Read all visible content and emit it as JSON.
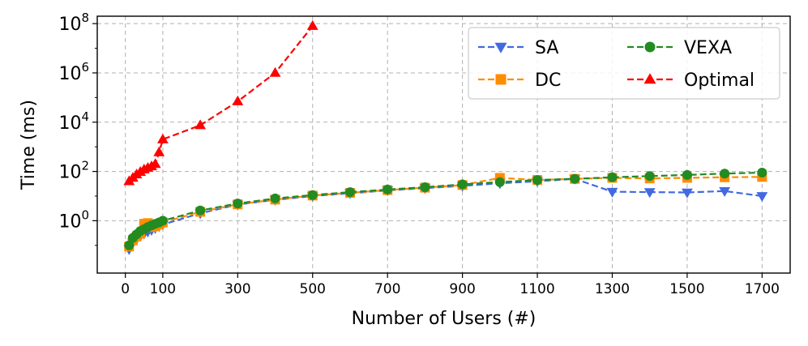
{
  "chart_data": {
    "type": "line",
    "xlabel": "Number of Users (#)",
    "ylabel": "Time (ms)",
    "yscale": "log",
    "xlim": [
      -75,
      1775
    ],
    "ylim": [
      0.0075,
      200000000
    ],
    "x_ticks": [
      0,
      100,
      300,
      500,
      700,
      900,
      1100,
      1300,
      1500,
      1700
    ],
    "x_tick_labels": [
      "0",
      "100",
      "300",
      "500",
      "700",
      "900",
      "1100",
      "1300",
      "1500",
      "1700"
    ],
    "y_ticks": [
      1,
      100,
      10000,
      1000000,
      100000000
    ],
    "y_tick_labels": [
      {
        "base": "10",
        "exp": "0"
      },
      {
        "base": "10",
        "exp": "2"
      },
      {
        "base": "10",
        "exp": "4"
      },
      {
        "base": "10",
        "exp": "6"
      },
      {
        "base": "10",
        "exp": "8"
      }
    ],
    "grid": true,
    "legend_position": "top-right",
    "series": [
      {
        "name": "SA",
        "color": "#4169e1",
        "marker": "triangle-down",
        "x": [
          10,
          20,
          30,
          40,
          50,
          60,
          70,
          80,
          90,
          100,
          200,
          300,
          400,
          500,
          600,
          700,
          800,
          900,
          1000,
          1100,
          1200,
          1300,
          1400,
          1500,
          1600,
          1700
        ],
        "y": [
          0.07,
          0.13,
          0.18,
          0.24,
          0.3,
          0.36,
          0.42,
          0.5,
          0.6,
          0.7,
          2.0,
          4.5,
          7.0,
          10,
          13,
          17,
          21,
          26,
          33,
          40,
          50,
          15,
          14.5,
          14,
          16,
          10
        ]
      },
      {
        "name": "DC",
        "color": "#ff8c00",
        "marker": "square",
        "x": [
          10,
          20,
          30,
          40,
          50,
          60,
          70,
          80,
          90,
          100,
          200,
          300,
          400,
          500,
          600,
          700,
          800,
          900,
          1000,
          1100,
          1200,
          1300,
          1400,
          1500,
          1600,
          1700
        ],
        "y": [
          0.09,
          0.16,
          0.23,
          0.3,
          0.75,
          0.8,
          0.55,
          0.6,
          0.7,
          0.85,
          2.3,
          4.6,
          7.2,
          10.5,
          13.5,
          17.5,
          22,
          28,
          55,
          45,
          50,
          55,
          52,
          55,
          58,
          60
        ]
      },
      {
        "name": "VEXA",
        "color": "#228b22",
        "marker": "circle",
        "x": [
          10,
          20,
          30,
          40,
          50,
          60,
          70,
          80,
          90,
          100,
          200,
          300,
          400,
          500,
          600,
          700,
          800,
          900,
          1000,
          1100,
          1200,
          1300,
          1400,
          1500,
          1600,
          1700
        ],
        "y": [
          0.1,
          0.2,
          0.28,
          0.38,
          0.45,
          0.55,
          0.65,
          0.75,
          0.85,
          1.0,
          2.6,
          5.0,
          8.0,
          11,
          14.5,
          18.5,
          23,
          30,
          37,
          45,
          50,
          58,
          65,
          72,
          82,
          90
        ]
      },
      {
        "name": "Optimal",
        "color": "#ff0000",
        "marker": "triangle-up",
        "x": [
          10,
          20,
          30,
          40,
          50,
          60,
          70,
          80,
          90,
          100,
          200,
          300,
          400,
          500
        ],
        "y": [
          40,
          55,
          75,
          95,
          120,
          140,
          160,
          200,
          600,
          2000,
          7500,
          70000,
          1000000,
          80000000
        ]
      }
    ]
  }
}
